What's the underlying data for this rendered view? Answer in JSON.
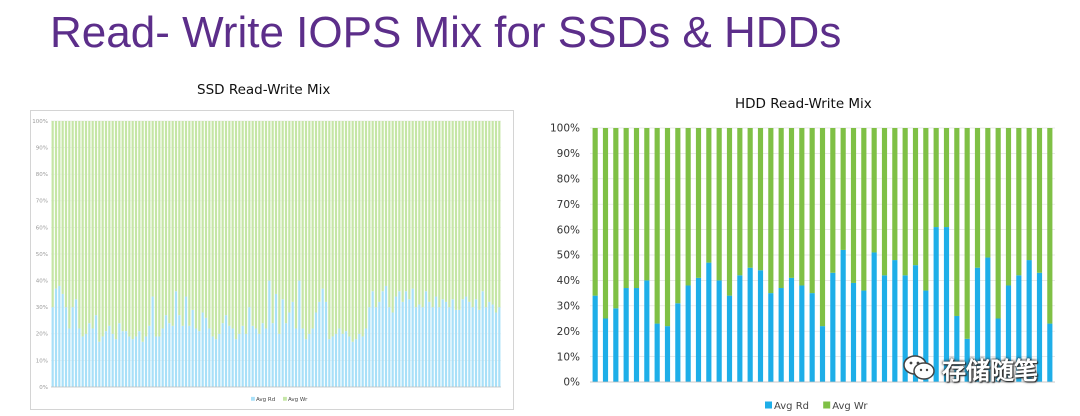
{
  "slide": {
    "title": "Read- Write IOPS Mix for SSDs & HDDs"
  },
  "colors": {
    "title": "#5c2e8a",
    "ssd_read": "#a8e0f8",
    "ssd_write": "#c5e6a6",
    "hdd_read": "#1eaee8",
    "hdd_write": "#7fc045"
  },
  "watermark": {
    "text": "存储随笔",
    "icon": "wechat-icon"
  },
  "chart_data": [
    {
      "id": "ssd",
      "type": "bar",
      "stacked": "percent",
      "title": "SSD Read-Write Mix",
      "ylim": [
        0,
        100
      ],
      "yticks": [
        "0%",
        "10%",
        "20%",
        "30%",
        "40%",
        "50%",
        "60%",
        "70%",
        "80%",
        "90%",
        "100%"
      ],
      "grid": true,
      "legend_position": "bottom-center",
      "series": [
        {
          "name": "Avg Rd",
          "values": [
            30,
            37,
            38,
            35,
            30,
            22,
            30,
            33,
            22,
            19,
            20,
            24,
            22,
            27,
            17,
            19,
            21,
            23,
            20,
            18,
            24,
            21,
            21,
            19,
            18,
            19,
            21,
            17,
            19,
            23,
            34,
            19,
            19,
            22,
            27,
            24,
            23,
            36,
            27,
            23,
            34,
            23,
            29,
            22,
            21,
            28,
            26,
            22,
            19,
            18,
            20,
            24,
            27,
            23,
            22,
            18,
            20,
            23,
            20,
            30,
            23,
            22,
            20,
            24,
            22,
            40,
            24,
            35,
            20,
            33,
            24,
            28,
            32,
            22,
            40,
            22,
            18,
            20,
            22,
            28,
            32,
            37,
            32,
            18,
            19,
            20,
            22,
            20,
            21,
            19,
            17,
            18,
            20,
            19,
            22,
            30,
            36,
            30,
            32,
            36,
            38,
            30,
            28,
            34,
            36,
            32,
            36,
            33,
            37,
            30,
            31,
            30,
            36,
            32,
            30,
            34,
            30,
            33,
            32,
            30,
            33,
            29,
            29,
            33,
            34,
            32,
            30,
            33,
            29,
            36,
            30,
            32,
            31,
            28,
            30
          ]
        },
        {
          "name": "Avg Wr",
          "values": [
            70,
            63,
            62,
            65,
            70,
            78,
            70,
            67,
            78,
            81,
            80,
            76,
            78,
            73,
            83,
            81,
            79,
            77,
            80,
            82,
            76,
            79,
            79,
            81,
            82,
            81,
            79,
            83,
            81,
            77,
            66,
            81,
            81,
            78,
            73,
            76,
            77,
            64,
            73,
            77,
            66,
            77,
            71,
            78,
            79,
            72,
            74,
            78,
            81,
            82,
            80,
            76,
            73,
            77,
            78,
            82,
            80,
            77,
            80,
            70,
            77,
            78,
            80,
            76,
            78,
            60,
            76,
            65,
            80,
            67,
            76,
            72,
            68,
            78,
            60,
            78,
            82,
            80,
            78,
            72,
            68,
            63,
            68,
            82,
            81,
            80,
            78,
            80,
            79,
            81,
            83,
            82,
            80,
            81,
            78,
            70,
            64,
            70,
            68,
            64,
            62,
            70,
            72,
            66,
            64,
            68,
            64,
            67,
            63,
            70,
            69,
            70,
            64,
            68,
            70,
            66,
            70,
            67,
            68,
            70,
            67,
            71,
            71,
            67,
            66,
            68,
            70,
            67,
            71,
            64,
            70,
            68,
            69,
            72,
            70
          ]
        }
      ]
    },
    {
      "id": "hdd",
      "type": "bar",
      "stacked": "percent",
      "title": "HDD Read-Write Mix",
      "ylim": [
        0,
        100
      ],
      "yticks": [
        "0%",
        "10%",
        "20%",
        "30%",
        "40%",
        "50%",
        "60%",
        "70%",
        "80%",
        "90%",
        "100%"
      ],
      "grid": true,
      "legend_position": "bottom-center",
      "series": [
        {
          "name": "Avg Rd",
          "values": [
            34,
            25,
            29,
            37,
            37,
            40,
            23,
            22,
            31,
            38,
            41,
            47,
            40,
            34,
            42,
            45,
            44,
            35,
            37,
            41,
            38,
            35,
            22,
            43,
            52,
            39,
            36,
            51,
            42,
            48,
            42,
            46,
            36,
            61,
            61,
            26,
            17,
            45,
            49,
            25,
            38,
            42,
            48,
            43,
            23
          ]
        },
        {
          "name": "Avg Wr",
          "values": [
            66,
            75,
            71,
            63,
            63,
            60,
            77,
            78,
            69,
            62,
            59,
            53,
            60,
            66,
            58,
            55,
            56,
            65,
            63,
            59,
            62,
            65,
            78,
            57,
            48,
            61,
            64,
            49,
            58,
            52,
            58,
            54,
            64,
            39,
            39,
            74,
            83,
            55,
            51,
            75,
            62,
            58,
            52,
            57,
            77
          ]
        }
      ]
    }
  ]
}
